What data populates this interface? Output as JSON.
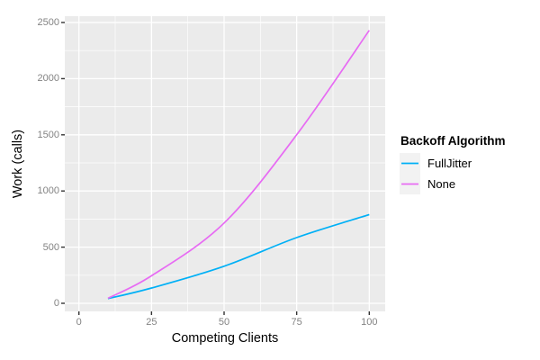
{
  "figure": {
    "background": "#FFFFFF",
    "panel_background": "#EBEBEB",
    "grid_color": "#FFFFFF",
    "tick_color": "#333333",
    "tick_label_color": "#838383"
  },
  "chart_data": {
    "type": "line",
    "title": "",
    "xlabel": "Competing Clients",
    "ylabel": "Work (calls)",
    "xlim": [
      0,
      100
    ],
    "ylim": [
      0,
      2500
    ],
    "xticks": [
      0,
      25,
      50,
      75,
      100
    ],
    "yticks": [
      0,
      500,
      1000,
      1500,
      2000,
      2500
    ],
    "x_minor_ticks": [
      12.5,
      37.5,
      62.5,
      87.5
    ],
    "y_minor_ticks": [
      250,
      750,
      1250,
      1750,
      2250
    ],
    "grid": "major+minor",
    "legend": {
      "title": "Backoff Algorithm",
      "position": "right",
      "entries": [
        {
          "label": "FullJitter",
          "color": "#00B0F6"
        },
        {
          "label": "None",
          "color": "#E76BF3"
        }
      ]
    },
    "series": [
      {
        "name": "FullJitter",
        "color": "#00B0F6",
        "x": [
          10,
          25,
          50,
          75,
          100
        ],
        "y": [
          42,
          136,
          330,
          585,
          790
        ]
      },
      {
        "name": "None",
        "color": "#E76BF3",
        "x": [
          10,
          25,
          50,
          75,
          100
        ],
        "y": [
          45,
          245,
          715,
          1500,
          2430
        ]
      }
    ]
  }
}
